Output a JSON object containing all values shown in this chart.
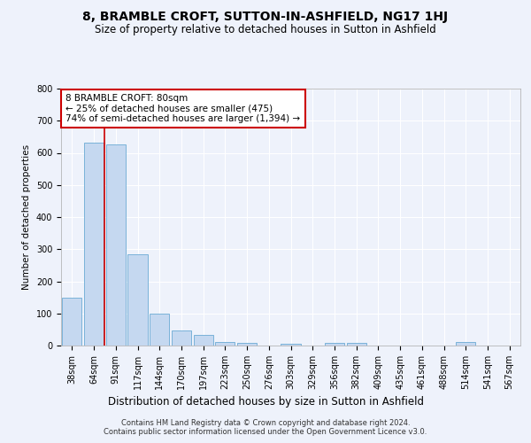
{
  "title": "8, BRAMBLE CROFT, SUTTON-IN-ASHFIELD, NG17 1HJ",
  "subtitle": "Size of property relative to detached houses in Sutton in Ashfield",
  "xlabel": "Distribution of detached houses by size in Sutton in Ashfield",
  "ylabel": "Number of detached properties",
  "categories": [
    "38sqm",
    "64sqm",
    "91sqm",
    "117sqm",
    "144sqm",
    "170sqm",
    "197sqm",
    "223sqm",
    "250sqm",
    "276sqm",
    "303sqm",
    "329sqm",
    "356sqm",
    "382sqm",
    "409sqm",
    "435sqm",
    "461sqm",
    "488sqm",
    "514sqm",
    "541sqm",
    "567sqm"
  ],
  "values": [
    148,
    632,
    625,
    285,
    100,
    47,
    33,
    10,
    8,
    0,
    5,
    0,
    7,
    7,
    0,
    0,
    0,
    0,
    10,
    0,
    0
  ],
  "bar_color": "#c5d8f0",
  "bar_edge_color": "#6aaad4",
  "annotation_box_text": "8 BRAMBLE CROFT: 80sqm\n← 25% of detached houses are smaller (475)\n74% of semi-detached houses are larger (1,394) →",
  "annotation_box_color": "#ffffff",
  "annotation_box_edge_color": "#cc0000",
  "vline_x_index": 1.5,
  "vline_color": "#cc0000",
  "ylim": [
    0,
    800
  ],
  "yticks": [
    0,
    100,
    200,
    300,
    400,
    500,
    600,
    700,
    800
  ],
  "background_color": "#eef2fb",
  "plot_bg_color": "#eef2fb",
  "footer_text": "Contains HM Land Registry data © Crown copyright and database right 2024.\nContains public sector information licensed under the Open Government Licence v3.0.",
  "title_fontsize": 10,
  "subtitle_fontsize": 8.5,
  "xlabel_fontsize": 8.5,
  "ylabel_fontsize": 7.5,
  "tick_fontsize": 7,
  "annotation_fontsize": 7.5,
  "footer_fontsize": 6
}
